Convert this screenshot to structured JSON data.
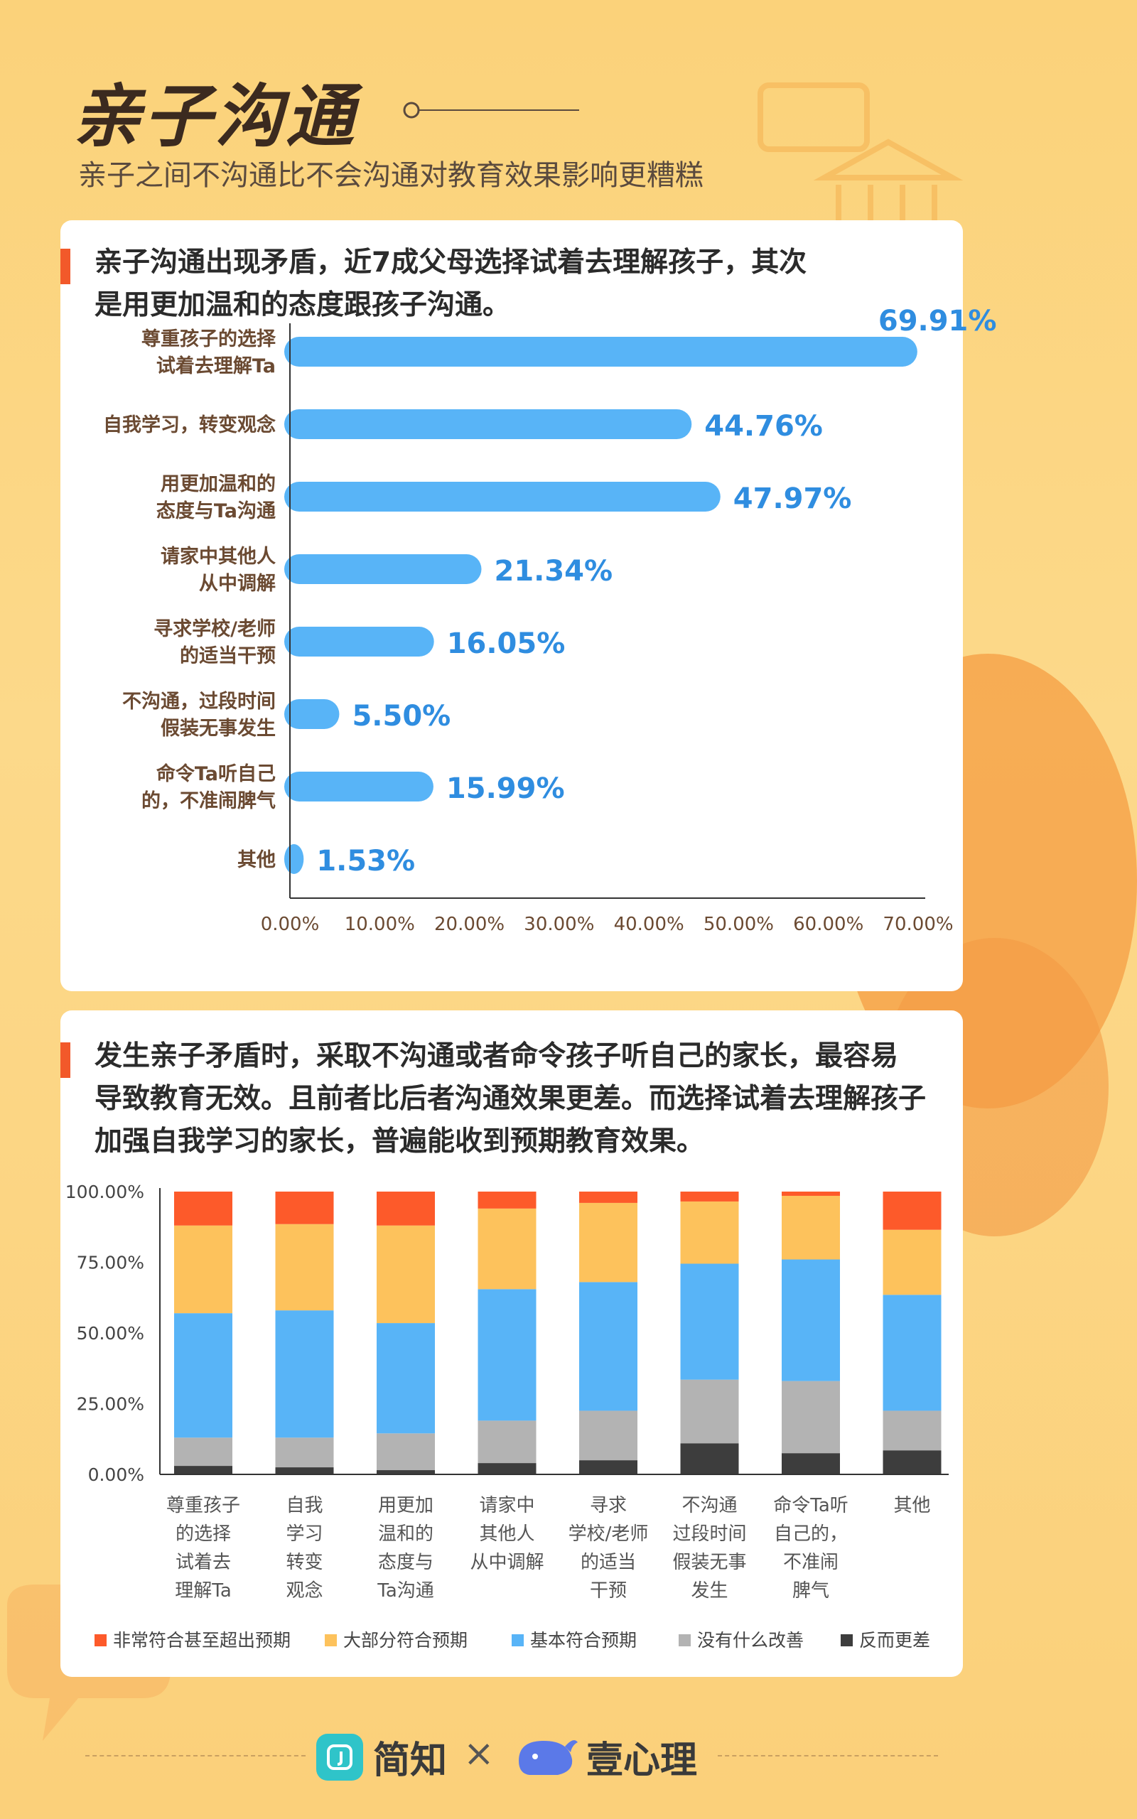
{
  "page": {
    "title": "亲子沟通",
    "subtitle": "亲子之间不沟通比不会沟通对教育效果影响更糟糕"
  },
  "colors": {
    "accent": "#f2592a",
    "bar_blue": "#58b4f7",
    "value_blue": "#2f8de0",
    "cat_brown": "#6b4a32",
    "series": [
      "#fd5a2a",
      "#fdc25c",
      "#58b4f7",
      "#b3b3b3",
      "#3d3d3d"
    ]
  },
  "section1": {
    "heading_lines": [
      "亲子沟通出现矛盾，近7成父母选择试着去理解孩子，其次",
      "是用更加温和的态度跟孩子沟通。"
    ]
  },
  "section2": {
    "heading_lines": [
      "发生亲子矛盾时，采取不沟通或者命令孩子听自己的家长，最容易",
      "导致教育无效。且前者比后者沟通效果更差。而选择试着去理解孩子",
      "加强自我学习的家长，普遍能收到预期教育效果。"
    ]
  },
  "footer": {
    "logo1_text": "简知",
    "logo1_icon": "jianzhi-logo-icon",
    "times": "×",
    "logo2_text": "壹心理",
    "logo2_icon": "whale-logo-icon"
  },
  "chart_data": [
    {
      "type": "bar",
      "orientation": "horizontal",
      "categories": [
        [
          "尊重孩子的选择",
          "试着去理解Ta"
        ],
        [
          "自我学习，转变观念"
        ],
        [
          "用更加温和的",
          "态度与Ta沟通"
        ],
        [
          "请家中其他人",
          "从中调解"
        ],
        [
          "寻求学校/老师",
          "的适当干预"
        ],
        [
          "不沟通，过段时间",
          "假装无事发生"
        ],
        [
          "命令Ta听自己",
          "的，不准闹脾气"
        ],
        [
          "其他"
        ]
      ],
      "values": [
        69.91,
        44.76,
        47.97,
        21.34,
        16.05,
        5.5,
        15.99,
        1.53
      ],
      "value_labels": [
        "69.91%",
        "44.76%",
        "47.97%",
        "21.34%",
        "16.05%",
        "5.50%",
        "15.99%",
        "1.53%"
      ],
      "xlim": [
        0,
        70
      ],
      "xticks": [
        "0.00%",
        "10.00%",
        "20.00%",
        "30.00%",
        "40.00%",
        "50.00%",
        "60.00%",
        "70.00%"
      ],
      "grid": false
    },
    {
      "type": "bar",
      "stacked": true,
      "categories": [
        [
          "尊重孩子",
          "的选择",
          "试着去",
          "理解Ta"
        ],
        [
          "自我",
          "学习",
          "转变",
          "观念"
        ],
        [
          "用更加",
          "温和的",
          "态度与",
          "Ta沟通"
        ],
        [
          "请家中",
          "其他人",
          "从中调解"
        ],
        [
          "寻求",
          "学校/老师",
          "的适当",
          "干预"
        ],
        [
          "不沟通",
          "过段时间",
          "假装无事",
          "发生"
        ],
        [
          "命令Ta听",
          "自己的，",
          "不准闹",
          "脾气"
        ],
        [
          "其他"
        ]
      ],
      "series": [
        {
          "name": "反而更差",
          "values": [
            3,
            2.5,
            1.5,
            4,
            5,
            11,
            7.5,
            8.5
          ]
        },
        {
          "name": "没有什么改善",
          "values": [
            10,
            10.5,
            13,
            15,
            17.5,
            22.5,
            25.5,
            14
          ]
        },
        {
          "name": "基本符合预期",
          "values": [
            44,
            45,
            39,
            46.5,
            45.5,
            41,
            43,
            41
          ]
        },
        {
          "name": "大部分符合预期",
          "values": [
            31,
            30.5,
            34.5,
            28.5,
            28,
            22,
            22.5,
            23
          ]
        },
        {
          "name": "非常符合甚至超出预期",
          "values": [
            12,
            11.5,
            12,
            6,
            4,
            3.5,
            1.5,
            13.5
          ]
        }
      ],
      "legend_order": [
        "非常符合甚至超出预期",
        "大部分符合预期",
        "基本符合预期",
        "没有什么改善",
        "反而更差"
      ],
      "ylim": [
        0,
        100
      ],
      "yticks": [
        "0.00%",
        "25.00%",
        "50.00%",
        "75.00%",
        "100.00%"
      ],
      "legend_position": "bottom",
      "grid": false
    }
  ]
}
